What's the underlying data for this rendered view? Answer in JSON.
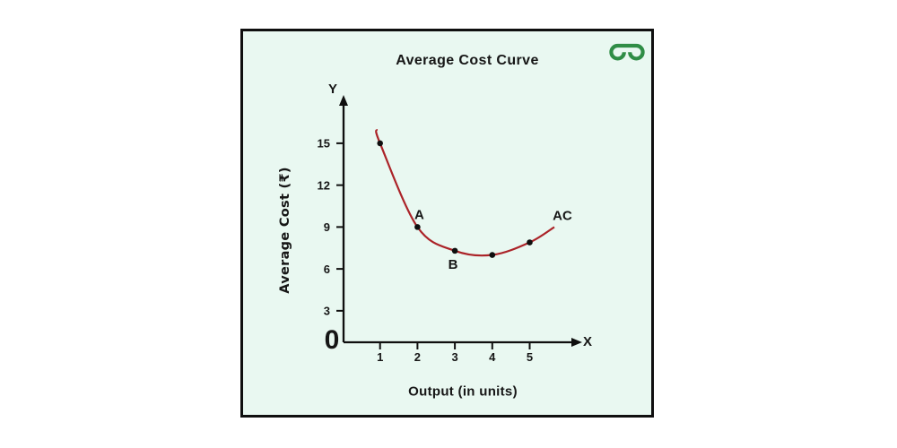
{
  "figure": {
    "brand": "GeeksforGeeks",
    "brand_logo_color": "#2f8d46",
    "frame_background": "#e9f8f1",
    "frame_border_color": "#0f0f0f"
  },
  "chart_data": {
    "type": "line",
    "title": "Average Cost Curve",
    "xlabel": "Output (in units)",
    "ylabel": "Average Cost (₹)",
    "x": [
      1,
      2,
      3,
      4,
      5
    ],
    "y": [
      15,
      9,
      7.3,
      7.0,
      7.9
    ],
    "xticks": [
      1,
      2,
      3,
      4,
      5
    ],
    "yticks": [
      3,
      6,
      9,
      12,
      15
    ],
    "origin_label": "0",
    "axis_end_labels": {
      "x": "X",
      "y": "Y"
    },
    "curve_label": "AC",
    "annotations": [
      {
        "label": "A",
        "x": 2,
        "y": 9,
        "position": "above"
      },
      {
        "label": "B",
        "x": 3,
        "y": 7.3,
        "position": "below"
      },
      {
        "label": "AC",
        "x": 5.66,
        "y": 9.0,
        "position": "curve-end"
      }
    ],
    "curve_extent": {
      "start": [
        0.91,
        16.0
      ],
      "end": [
        5.66,
        9.0
      ]
    },
    "xlim": [
      0,
      6.3
    ],
    "ylim": [
      0,
      17.5
    ],
    "grid": false,
    "legend_position": "none",
    "colors": {
      "curve": "#ab2328",
      "points": "#0f0f0f",
      "axis": "#0f0f0f",
      "text": "#161616"
    }
  }
}
